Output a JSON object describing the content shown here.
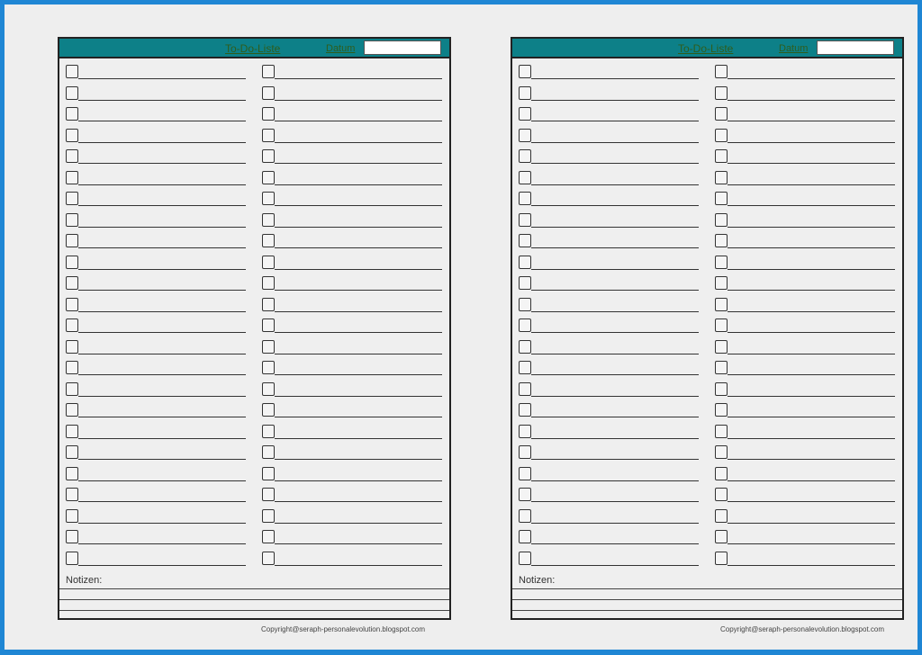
{
  "colors": {
    "frame": "#1f86d4",
    "header": "#0d8088",
    "background": "#eeeeee"
  },
  "sheets": [
    {
      "title": "To-Do-Liste",
      "date_label": "Datum",
      "date_value": "",
      "notes_label": "Notizen:",
      "copyright": "Copyright@seraph-personalevolution.blogspot.com"
    },
    {
      "title": "To-Do-Liste",
      "date_label": "Datum",
      "date_value": "",
      "notes_label": "Notizen:",
      "copyright": "Copyright@seraph-personalevolution.blogspot.com"
    }
  ],
  "items_per_column": 24
}
